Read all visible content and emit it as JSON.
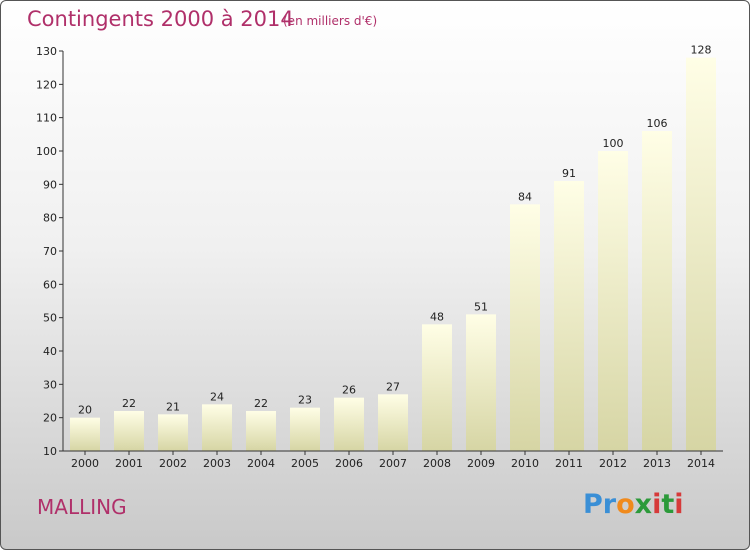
{
  "header": {
    "title": "Contingents 2000 à 2014",
    "subtitle": "(en milliers d'€)"
  },
  "footer": {
    "place": "MALLING",
    "logo": "Proxiti"
  },
  "colors": {
    "title": "#b0306a",
    "bar_top": "#fffde0",
    "bar_bottom": "#d9d8a8"
  },
  "chart_data": {
    "type": "bar",
    "title": "Contingents 2000 à 2014",
    "subtitle": "(en milliers d'€)",
    "xlabel": "",
    "ylabel": "",
    "categories": [
      "2000",
      "2001",
      "2002",
      "2003",
      "2004",
      "2005",
      "2006",
      "2007",
      "2008",
      "2009",
      "2010",
      "2011",
      "2012",
      "2013",
      "2014"
    ],
    "values": [
      20,
      22,
      21,
      24,
      22,
      23,
      26,
      27,
      48,
      51,
      84,
      91,
      100,
      106,
      128
    ],
    "data_labels": [
      "20",
      "22",
      "21",
      "24",
      "22",
      "23",
      "26",
      "27",
      "48",
      "51",
      "84",
      "91",
      "100",
      "106",
      "128"
    ],
    "ylim": [
      10,
      130
    ],
    "yticks": [
      10,
      20,
      30,
      40,
      50,
      60,
      70,
      80,
      90,
      100,
      110,
      120,
      130
    ],
    "grid": false,
    "legend": "none"
  }
}
